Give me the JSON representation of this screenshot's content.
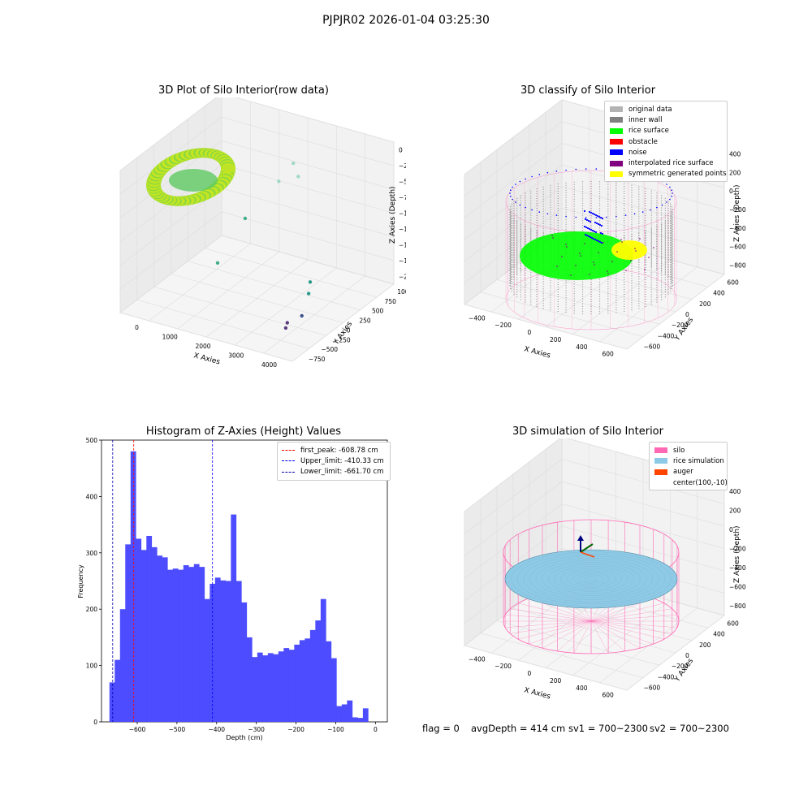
{
  "suptitle": "PJPJR02 2026-01-04 03:25:30",
  "footer": {
    "flag": "flag = 0",
    "avg": "avgDepth = 414 cm",
    "sv1": "sv1 = 700~2300",
    "sv2": "sv2 = 700~2300"
  },
  "colors": {
    "silo": "#ff69b4",
    "rice_sim": "#8ecae6",
    "auger": "#ff4500",
    "inner_wall": "#808080",
    "rice_surface": "#00ff00",
    "noise": "#0000ff",
    "interp": "#800080",
    "sym": "#ffff00",
    "hist": "#4d4dff"
  },
  "chart_data": [
    {
      "type": "scatter",
      "title": "3D Plot of Silo Interior(row data)",
      "xlabel": "X Axies",
      "ylabel": "Y Axies",
      "zlabel": "Z Axies (Depth)",
      "x_ticks": [
        "0",
        "1000",
        "2000",
        "3000",
        "4000"
      ],
      "y_ticks": [
        "−750",
        "−500",
        "−250",
        "0",
        "250",
        "500",
        "750",
        "1000"
      ],
      "z_ticks": [
        "−2000",
        "−1750",
        "−1500",
        "−1250",
        "−1000",
        "−750",
        "−500",
        "−250",
        "0"
      ],
      "outliers": [
        {
          "x": 2500,
          "y": 700,
          "z": -280
        },
        {
          "x": 2700,
          "y": 650,
          "z": -420
        },
        {
          "x": 2400,
          "y": 500,
          "z": -450
        },
        {
          "x": 1800,
          "y": 300,
          "z": -1000
        },
        {
          "x": 1500,
          "y": 0,
          "z": -1550
        },
        {
          "x": 3500,
          "y": 300,
          "z": -1700
        },
        {
          "x": 3600,
          "y": 200,
          "z": -1800
        },
        {
          "x": 3700,
          "y": 0,
          "z": -2000
        },
        {
          "x": 3600,
          "y": -200,
          "z": -2000
        },
        {
          "x": 3700,
          "y": -300,
          "z": -2000
        }
      ]
    },
    {
      "type": "scatter",
      "title": "3D classify of Silo Interior",
      "xlabel": "X Axies",
      "ylabel": "Y Axies",
      "zlabel": "Z Axies (Depth)",
      "x_ticks": [
        "−400",
        "−200",
        "0",
        "200",
        "400",
        "600"
      ],
      "y_ticks": [
        "−600",
        "−400",
        "−200",
        "0",
        "200",
        "400",
        "600"
      ],
      "z_ticks": [
        "−800",
        "−600",
        "−400",
        "−200",
        "0",
        "200",
        "400"
      ],
      "legend": [
        {
          "label": "original data",
          "color": "#b3b3b3"
        },
        {
          "label": "inner wall",
          "color": "#808080"
        },
        {
          "label": "rice surface",
          "color": "#00ff00"
        },
        {
          "label": "obstacle",
          "color": "#ff0000"
        },
        {
          "label": "noise",
          "color": "#0000ff"
        },
        {
          "label": "interpolated rice surface",
          "color": "#800080"
        },
        {
          "label": "symmetric generated points",
          "color": "#ffff00"
        }
      ]
    },
    {
      "type": "bar",
      "title": "Histogram of Z-Axies (Height) Values",
      "xlabel": "Depth (cm)",
      "ylabel": "Frequency",
      "xlim": [
        -690,
        30
      ],
      "ylim": [
        0,
        500
      ],
      "x_ticks": [
        -600,
        -500,
        -400,
        -300,
        -200,
        -100,
        0
      ],
      "y_ticks": [
        0,
        100,
        200,
        300,
        400,
        500
      ],
      "bin_start": -670,
      "bin_width": 13.3,
      "values": [
        70,
        110,
        200,
        315,
        480,
        325,
        305,
        330,
        310,
        295,
        292,
        270,
        272,
        270,
        278,
        275,
        280,
        275,
        218,
        245,
        256,
        251,
        250,
        368,
        250,
        212,
        150,
        115,
        123,
        118,
        122,
        120,
        125,
        131,
        128,
        137,
        145,
        148,
        163,
        180,
        218,
        143,
        113,
        28,
        31,
        38,
        8,
        7,
        24
      ],
      "vlines": [
        {
          "label": "first_peak: -608.78 cm",
          "x": -608.78,
          "color": "#ff0000"
        },
        {
          "label": "Upper_limit: -410.33 cm",
          "x": -410.33,
          "color": "#0000ff"
        },
        {
          "label": "Lower_limit: -661.70 cm",
          "x": -661.7,
          "color": "#0000aa"
        }
      ]
    },
    {
      "type": "area",
      "title": "3D simulation of Silo Interior",
      "xlabel": "X Axies",
      "ylabel": "Y Axies",
      "zlabel": "Z Axies (Depth)",
      "x_ticks": [
        "−400",
        "−200",
        "0",
        "200",
        "400",
        "600"
      ],
      "y_ticks": [
        "−600",
        "−400",
        "−200",
        "0",
        "200",
        "400",
        "600"
      ],
      "z_ticks": [
        "−800",
        "−600",
        "−400",
        "−200",
        "0",
        "200",
        "400"
      ],
      "legend": [
        {
          "label": "silo",
          "color": "#ff69b4"
        },
        {
          "label": "rice simulation",
          "color": "#8ecae6"
        },
        {
          "label": "auger",
          "color": "#ff4500"
        },
        {
          "label": "center(100,-10)",
          "color": ""
        }
      ]
    }
  ]
}
